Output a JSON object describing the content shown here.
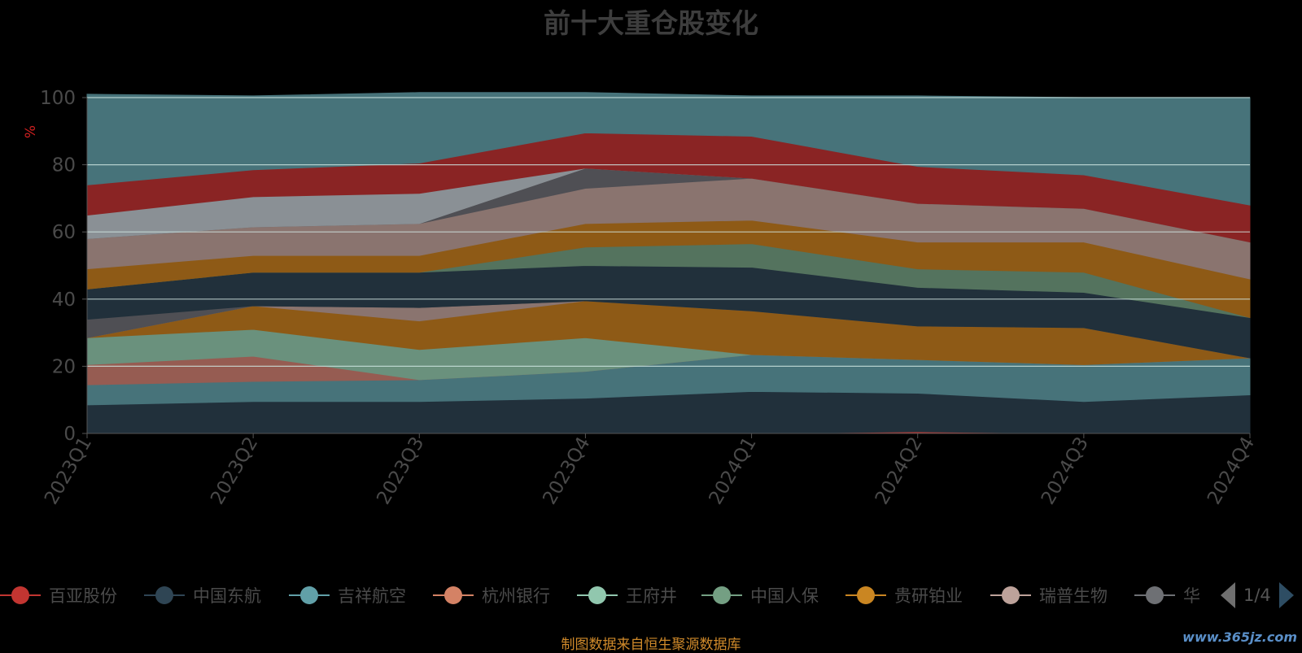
{
  "title": "前十大重仓股变化",
  "source_note": "制图数据来自恒生聚源数据库",
  "watermark": "www.365jz.com",
  "legend_pager": "1/4",
  "chart_data": {
    "type": "area",
    "stacked": true,
    "ylabel": "%",
    "ylim": [
      0,
      100
    ],
    "yticks": [
      0,
      20,
      40,
      60,
      80,
      100
    ],
    "grid": true,
    "categories": [
      "2023Q1",
      "2023Q2",
      "2023Q3",
      "2023Q4",
      "2024Q1",
      "2024Q2",
      "2024Q3",
      "2024Q4"
    ],
    "series": [
      {
        "name": "百亚股份",
        "color": "#c23531",
        "values": [
          0,
          0,
          0,
          0,
          0,
          0.5,
          0,
          0
        ]
      },
      {
        "name": "",
        "color": "#21303b",
        "values": [
          8.5,
          9.5,
          9.5,
          10.5,
          12.5,
          11.5,
          9.5,
          11.5
        ]
      },
      {
        "name": "",
        "color": "#47737a",
        "values": [
          6,
          6,
          6.5,
          8,
          11,
          10,
          11,
          11
        ]
      },
      {
        "name": "",
        "color": "#965c52",
        "values": [
          6,
          7.5,
          0,
          0,
          0,
          0,
          0,
          0
        ]
      },
      {
        "name": "",
        "color": "#6a917d",
        "values": [
          8,
          8,
          9,
          10,
          0,
          0,
          0,
          0
        ]
      },
      {
        "name": "",
        "color": "#8e5a16",
        "values": [
          0,
          7,
          8.5,
          11,
          13,
          10,
          11,
          0
        ]
      },
      {
        "name": "",
        "color": "#8a746f",
        "values": [
          0,
          0,
          4,
          0,
          0,
          0,
          0,
          0
        ]
      },
      {
        "name": "",
        "color": "#4f4f54",
        "values": [
          5.5,
          0,
          0,
          0,
          0,
          0,
          0,
          0
        ]
      },
      {
        "name": "",
        "color": "#21303b",
        "values": [
          9,
          10,
          10.5,
          10.5,
          13,
          11.5,
          10.5,
          12
        ]
      },
      {
        "name": "",
        "color": "#54735e",
        "values": [
          0,
          0,
          0,
          5.5,
          7,
          5.5,
          6,
          0
        ]
      },
      {
        "name": "",
        "color": "#8e5a16",
        "values": [
          6,
          5,
          5,
          7,
          7,
          8,
          9,
          11.5
        ]
      },
      {
        "name": "",
        "color": "#8a746f",
        "values": [
          9,
          8.5,
          9.5,
          10.5,
          12.5,
          11.5,
          10,
          11
        ]
      },
      {
        "name": "",
        "color": "#4f4f54",
        "values": [
          0,
          0,
          0,
          6,
          0,
          0,
          0,
          0
        ]
      },
      {
        "name": "",
        "color": "#8a9095",
        "values": [
          7,
          9,
          9,
          0,
          0,
          0,
          0,
          0
        ]
      },
      {
        "name": "",
        "color": "#8a2424",
        "values": [
          9,
          8,
          9,
          10.5,
          12.5,
          11,
          10,
          11
        ]
      },
      {
        "name": "",
        "color": "#47737a",
        "values": [
          27,
          22,
          21,
          12,
          12,
          21,
          23,
          32
        ]
      }
    ],
    "legend": [
      {
        "name": "百亚股份",
        "color": "#c23531"
      },
      {
        "name": "中国东航",
        "color": "#2f4554"
      },
      {
        "name": "吉祥航空",
        "color": "#61a0a8"
      },
      {
        "name": "杭州银行",
        "color": "#d48265"
      },
      {
        "name": "王府井",
        "color": "#91c7ae"
      },
      {
        "name": "中国人保",
        "color": "#749f83"
      },
      {
        "name": "贵研铂业",
        "color": "#ca8622"
      },
      {
        "name": "瑞普生物",
        "color": "#bda29a"
      },
      {
        "name": "华",
        "color": "#6e7074"
      }
    ],
    "legend_position": "bottom"
  }
}
